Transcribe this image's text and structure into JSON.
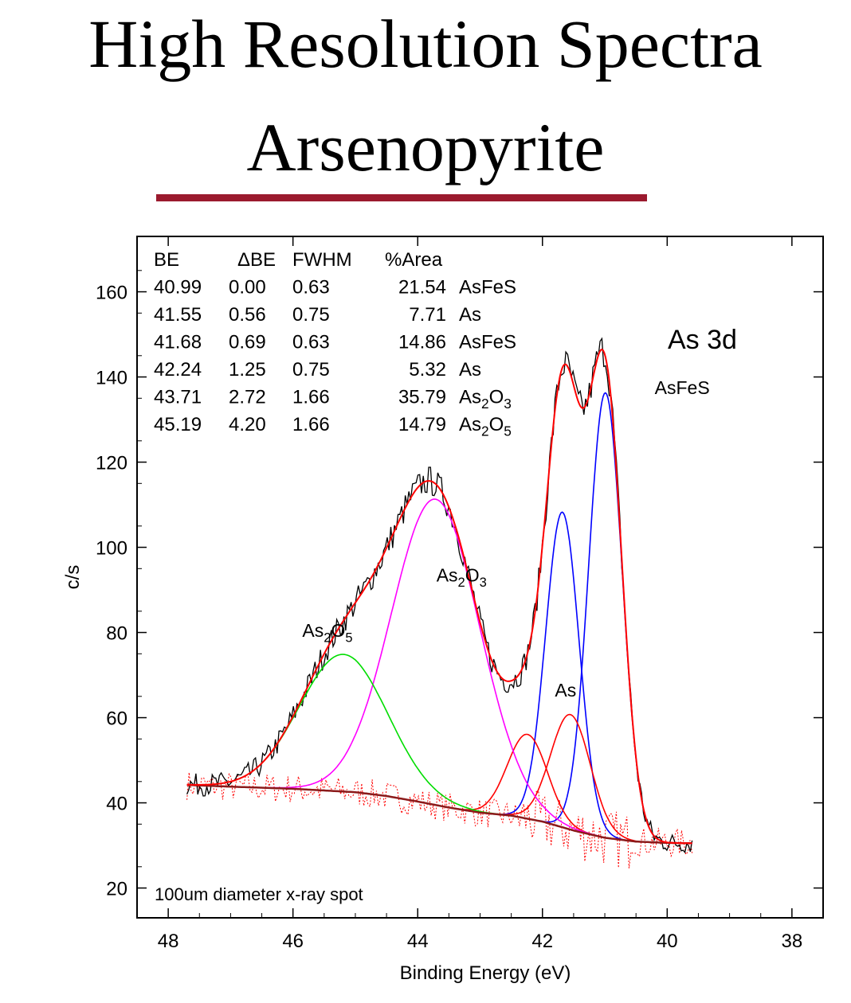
{
  "title_line1": "High Resolution Spectra",
  "title_line2": "Arsenopyrite",
  "colors": {
    "rule": "#9b1a2e",
    "fit_envelope": "#ff0000",
    "AsFeS": "#0000ff",
    "As": "#ff0000",
    "As2O3": "#ff00ff",
    "As2O5": "#00dd00",
    "residual": "#ff0000",
    "raw": "#000000"
  },
  "chart_data": {
    "type": "line",
    "xlabel": "Binding Energy (eV)",
    "ylabel": "c/s",
    "xlim": [
      48.5,
      37.5
    ],
    "ylim": [
      13,
      173
    ],
    "x_reversed": true,
    "xticks": [
      48,
      46,
      44,
      42,
      40,
      38
    ],
    "yticks": [
      20,
      40,
      60,
      80,
      100,
      120,
      140,
      160
    ],
    "grid": false,
    "region_label": "As 3d",
    "footnote": "100um diameter x-ray spot",
    "table": {
      "headers": [
        "BE",
        "ΔBE",
        "FWHM",
        "%Area"
      ],
      "rows": [
        {
          "be": "40.99",
          "dbe": "0.00",
          "fwhm": "0.63",
          "area": "21.54",
          "species": "AsFeS",
          "main": "AsFeS",
          "sub": ""
        },
        {
          "be": "41.55",
          "dbe": "0.56",
          "fwhm": "0.75",
          "area": "7.71",
          "species": "As",
          "main": "As",
          "sub": ""
        },
        {
          "be": "41.68",
          "dbe": "0.69",
          "fwhm": "0.63",
          "area": "14.86",
          "species": "AsFeS",
          "main": "AsFeS",
          "sub": ""
        },
        {
          "be": "42.24",
          "dbe": "1.25",
          "fwhm": "0.75",
          "area": "5.32",
          "species": "As",
          "main": "As",
          "sub": ""
        },
        {
          "be": "43.71",
          "dbe": "2.72",
          "fwhm": "1.66",
          "area": "35.79",
          "species": "As2O3",
          "main": "As",
          "sub": "2",
          "main2": "O",
          "sub2": "3"
        },
        {
          "be": "45.19",
          "dbe": "4.20",
          "fwhm": "1.66",
          "area": "14.79",
          "species": "As2O5",
          "main": "As",
          "sub": "2",
          "main2": "O",
          "sub2": "5"
        }
      ]
    },
    "peak_labels": [
      {
        "main": "AsFeS",
        "sub": "",
        "main2": "",
        "sub2": "",
        "x": 40.2,
        "y": 136
      },
      {
        "main": "As",
        "sub": "",
        "main2": "",
        "sub2": "",
        "x": 41.8,
        "y": 65
      },
      {
        "main": "As",
        "sub": "2",
        "main2": "O",
        "sub2": "3",
        "x": 43.7,
        "y": 92
      },
      {
        "main": "As",
        "sub": "2",
        "main2": "O",
        "sub2": "5",
        "x": 45.85,
        "y": 79
      }
    ],
    "baseline": {
      "x": [
        47.7,
        47,
        46,
        45,
        44.5,
        44,
        43.5,
        43,
        42.5,
        42,
        41.5,
        41,
        40.5,
        40,
        39.6
      ],
      "y": [
        44.2,
        43.8,
        43.3,
        42.5,
        41.6,
        40.3,
        38.9,
        37.7,
        37.0,
        35.6,
        33.5,
        31.8,
        30.9,
        30.6,
        30.5
      ]
    },
    "components": [
      {
        "name": "AsFeS",
        "color": "#0000ff",
        "center": 40.99,
        "fwhm": 0.63,
        "peak": 144.5
      },
      {
        "name": "AsFeS",
        "color": "#0000ff",
        "center": 41.68,
        "fwhm": 0.63,
        "peak": 114
      },
      {
        "name": "As",
        "color": "#ff0000",
        "center": 41.55,
        "fwhm": 0.75,
        "peak": 67
      },
      {
        "name": "As",
        "color": "#ff0000",
        "center": 42.24,
        "fwhm": 0.75,
        "peak": 59.8
      },
      {
        "name": "As2O3",
        "color": "#ff00ff",
        "center": 43.71,
        "fwhm": 1.66,
        "peak": 111.8
      },
      {
        "name": "As2O5",
        "color": "#00dd00",
        "center": 45.19,
        "fwhm": 1.66,
        "peak": 72.2
      }
    ]
  }
}
